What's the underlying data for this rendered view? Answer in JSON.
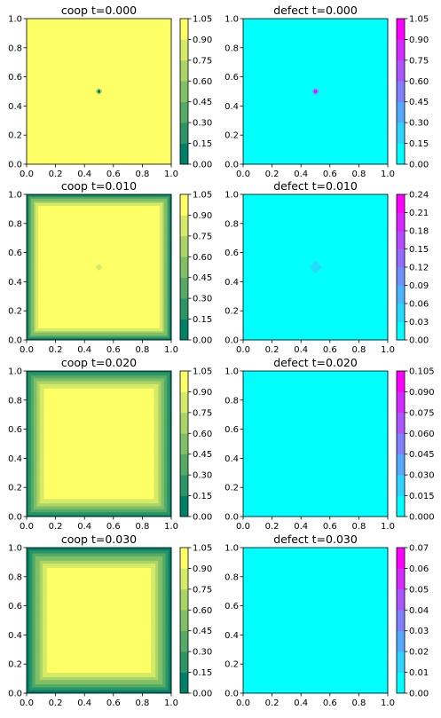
{
  "chart_data": [
    {
      "type": "heatmap",
      "title": "coop   t=0.000",
      "panel": "coop",
      "x_ticks": [
        "0.0",
        "0.2",
        "0.4",
        "0.6",
        "0.8",
        "1.0"
      ],
      "y_ticks": [
        "0.0",
        "0.2",
        "0.4",
        "0.6",
        "0.8",
        "1.0"
      ],
      "xlim": [
        0,
        1
      ],
      "ylim": [
        0,
        1
      ],
      "levels": [
        0.0,
        0.15,
        0.3,
        0.45,
        0.6,
        0.75,
        0.9,
        1.05
      ],
      "colorbar_ticks": [
        "0.00",
        "0.15",
        "0.30",
        "0.45",
        "0.60",
        "0.75",
        "0.90",
        "1.05"
      ],
      "field": {
        "base": 0.98,
        "border_width": 0.0,
        "center_value": 0.0,
        "center_radius": 0.025
      },
      "colormap": "summer"
    },
    {
      "type": "heatmap",
      "title": "defect   t=0.000",
      "panel": "defect",
      "x_ticks": [
        "0.0",
        "0.2",
        "0.4",
        "0.6",
        "0.8",
        "1.0"
      ],
      "y_ticks": [
        "0.0",
        "0.2",
        "0.4",
        "0.6",
        "0.8",
        "1.0"
      ],
      "xlim": [
        0,
        1
      ],
      "ylim": [
        0,
        1
      ],
      "levels": [
        0.0,
        0.15,
        0.3,
        0.45,
        0.6,
        0.75,
        0.9,
        1.05
      ],
      "colorbar_ticks": [
        "0.00",
        "0.15",
        "0.30",
        "0.45",
        "0.60",
        "0.75",
        "0.90",
        "1.05"
      ],
      "field": {
        "base": 0.02,
        "center_value": 1.0,
        "center_radius": 0.03
      },
      "colormap": "cool"
    },
    {
      "type": "heatmap",
      "title": "coop   t=0.010",
      "panel": "coop",
      "x_ticks": [
        "0.0",
        "0.2",
        "0.4",
        "0.6",
        "0.8",
        "1.0"
      ],
      "y_ticks": [
        "0.0",
        "0.2",
        "0.4",
        "0.6",
        "0.8",
        "1.0"
      ],
      "xlim": [
        0,
        1
      ],
      "ylim": [
        0,
        1
      ],
      "levels": [
        0.0,
        0.15,
        0.3,
        0.45,
        0.6,
        0.75,
        0.9,
        1.05
      ],
      "colorbar_ticks": [
        "0.00",
        "0.15",
        "0.30",
        "0.45",
        "0.60",
        "0.75",
        "0.90",
        "1.05"
      ],
      "field": {
        "base": 0.98,
        "border_width": 0.09,
        "center_value": 0.8,
        "center_radius": 0.04
      },
      "colormap": "summer"
    },
    {
      "type": "heatmap",
      "title": "defect   t=0.010",
      "panel": "defect",
      "x_ticks": [
        "0.0",
        "0.2",
        "0.4",
        "0.6",
        "0.8",
        "1.0"
      ],
      "y_ticks": [
        "0.0",
        "0.2",
        "0.4",
        "0.6",
        "0.8",
        "1.0"
      ],
      "xlim": [
        0,
        1
      ],
      "ylim": [
        0,
        1
      ],
      "levels": [
        0.0,
        0.03,
        0.06,
        0.09,
        0.12,
        0.15,
        0.18,
        0.21,
        0.24
      ],
      "colorbar_ticks": [
        "0.00",
        "0.03",
        "0.06",
        "0.09",
        "0.12",
        "0.15",
        "0.18",
        "0.21",
        "0.24"
      ],
      "field": {
        "base": 0.01,
        "center_value": 0.05,
        "center_radius": 0.07
      },
      "colormap": "cool"
    },
    {
      "type": "heatmap",
      "title": "coop   t=0.020",
      "panel": "coop",
      "x_ticks": [
        "0.0",
        "0.2",
        "0.4",
        "0.6",
        "0.8",
        "1.0"
      ],
      "y_ticks": [
        "0.0",
        "0.2",
        "0.4",
        "0.6",
        "0.8",
        "1.0"
      ],
      "xlim": [
        0,
        1
      ],
      "ylim": [
        0,
        1
      ],
      "levels": [
        0.0,
        0.15,
        0.3,
        0.45,
        0.6,
        0.75,
        0.9,
        1.05
      ],
      "colorbar_ticks": [
        "0.00",
        "0.15",
        "0.30",
        "0.45",
        "0.60",
        "0.75",
        "0.90",
        "1.05"
      ],
      "field": {
        "base": 0.98,
        "border_width": 0.13,
        "center_value": 0.98,
        "center_radius": 0.0
      },
      "colormap": "summer"
    },
    {
      "type": "heatmap",
      "title": "defect   t=0.020",
      "panel": "defect",
      "x_ticks": [
        "0.0",
        "0.2",
        "0.4",
        "0.6",
        "0.8",
        "1.0"
      ],
      "y_ticks": [
        "0.0",
        "0.2",
        "0.4",
        "0.6",
        "0.8",
        "1.0"
      ],
      "xlim": [
        0,
        1
      ],
      "ylim": [
        0,
        1
      ],
      "levels": [
        0.0,
        0.015,
        0.03,
        0.045,
        0.06,
        0.075,
        0.09,
        0.105
      ],
      "colorbar_ticks": [
        "0.000",
        "0.015",
        "0.030",
        "0.045",
        "0.060",
        "0.075",
        "0.090",
        "0.105"
      ],
      "field": {
        "base": 0.003,
        "center_value": 0.01,
        "center_radius": 0.09
      },
      "colormap": "cool"
    },
    {
      "type": "heatmap",
      "title": "coop   t=0.030",
      "panel": "coop",
      "x_ticks": [
        "0.0",
        "0.2",
        "0.4",
        "0.6",
        "0.8",
        "1.0"
      ],
      "y_ticks": [
        "0.0",
        "0.2",
        "0.4",
        "0.6",
        "0.8",
        "1.0"
      ],
      "xlim": [
        0,
        1
      ],
      "ylim": [
        0,
        1
      ],
      "levels": [
        0.0,
        0.15,
        0.3,
        0.45,
        0.6,
        0.75,
        0.9,
        1.05
      ],
      "colorbar_ticks": [
        "0.00",
        "0.15",
        "0.30",
        "0.45",
        "0.60",
        "0.75",
        "0.90",
        "1.05"
      ],
      "field": {
        "base": 0.98,
        "border_width": 0.16,
        "center_value": 0.98,
        "center_radius": 0.0
      },
      "colormap": "summer"
    },
    {
      "type": "heatmap",
      "title": "defect   t=0.030",
      "panel": "defect",
      "x_ticks": [
        "0.0",
        "0.2",
        "0.4",
        "0.6",
        "0.8",
        "1.0"
      ],
      "y_ticks": [
        "0.0",
        "0.2",
        "0.4",
        "0.6",
        "0.8",
        "1.0"
      ],
      "xlim": [
        0,
        1
      ],
      "ylim": [
        0,
        1
      ],
      "levels": [
        0.0,
        0.01,
        0.02,
        0.03,
        0.04,
        0.05,
        0.06,
        0.07
      ],
      "colorbar_ticks": [
        "0.00",
        "0.01",
        "0.02",
        "0.03",
        "0.04",
        "0.05",
        "0.06",
        "0.07"
      ],
      "field": {
        "base": 0.002,
        "center_value": 0.006,
        "center_radius": 0.1
      },
      "colormap": "cool"
    }
  ]
}
